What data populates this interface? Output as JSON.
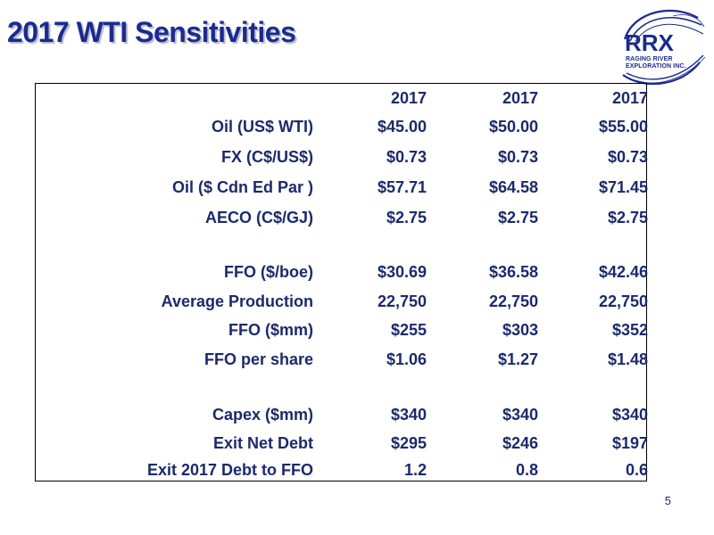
{
  "header": {
    "title": "2017 WTI Sensitivities"
  },
  "logo": {
    "name": "RRX",
    "line1": "RAGING RIVER",
    "line2": "EXPLORATION INC.",
    "color": "#1a2b8f"
  },
  "table": {
    "columns": [
      "2017",
      "2017",
      "2017"
    ],
    "rows": [
      {
        "label": "Oil (US$ WTI)",
        "values": [
          "$45.00",
          "$50.00",
          "$55.00"
        ]
      },
      {
        "label": "FX (C$/US$)",
        "values": [
          "$0.73",
          "$0.73",
          "$0.73"
        ]
      },
      {
        "label": "Oil ($ Cdn Ed Par )",
        "values": [
          "$57.71",
          "$64.58",
          "$71.45"
        ]
      },
      {
        "label": "AECO (C$/GJ)",
        "values": [
          "$2.75",
          "$2.75",
          "$2.75"
        ]
      },
      {
        "label": "FFO ($/boe)",
        "values": [
          "$30.69",
          "$36.58",
          "$42.46"
        ]
      },
      {
        "label": "Average Production",
        "values": [
          "22,750",
          "22,750",
          "22,750"
        ]
      },
      {
        "label": "FFO ($mm)",
        "values": [
          "$255",
          "$303",
          "$352"
        ]
      },
      {
        "label": "FFO per share",
        "values": [
          "$1.06",
          "$1.27",
          "$1.48"
        ]
      },
      {
        "label": "Capex ($mm)",
        "values": [
          "$340",
          "$340",
          "$340"
        ]
      },
      {
        "label": "Exit Net Debt",
        "values": [
          "$295",
          "$246",
          "$197"
        ]
      },
      {
        "label": "Exit  2017 Debt to FFO",
        "values": [
          "1.2",
          "0.8",
          "0.6"
        ]
      }
    ]
  },
  "footer": {
    "page_number": "5"
  }
}
